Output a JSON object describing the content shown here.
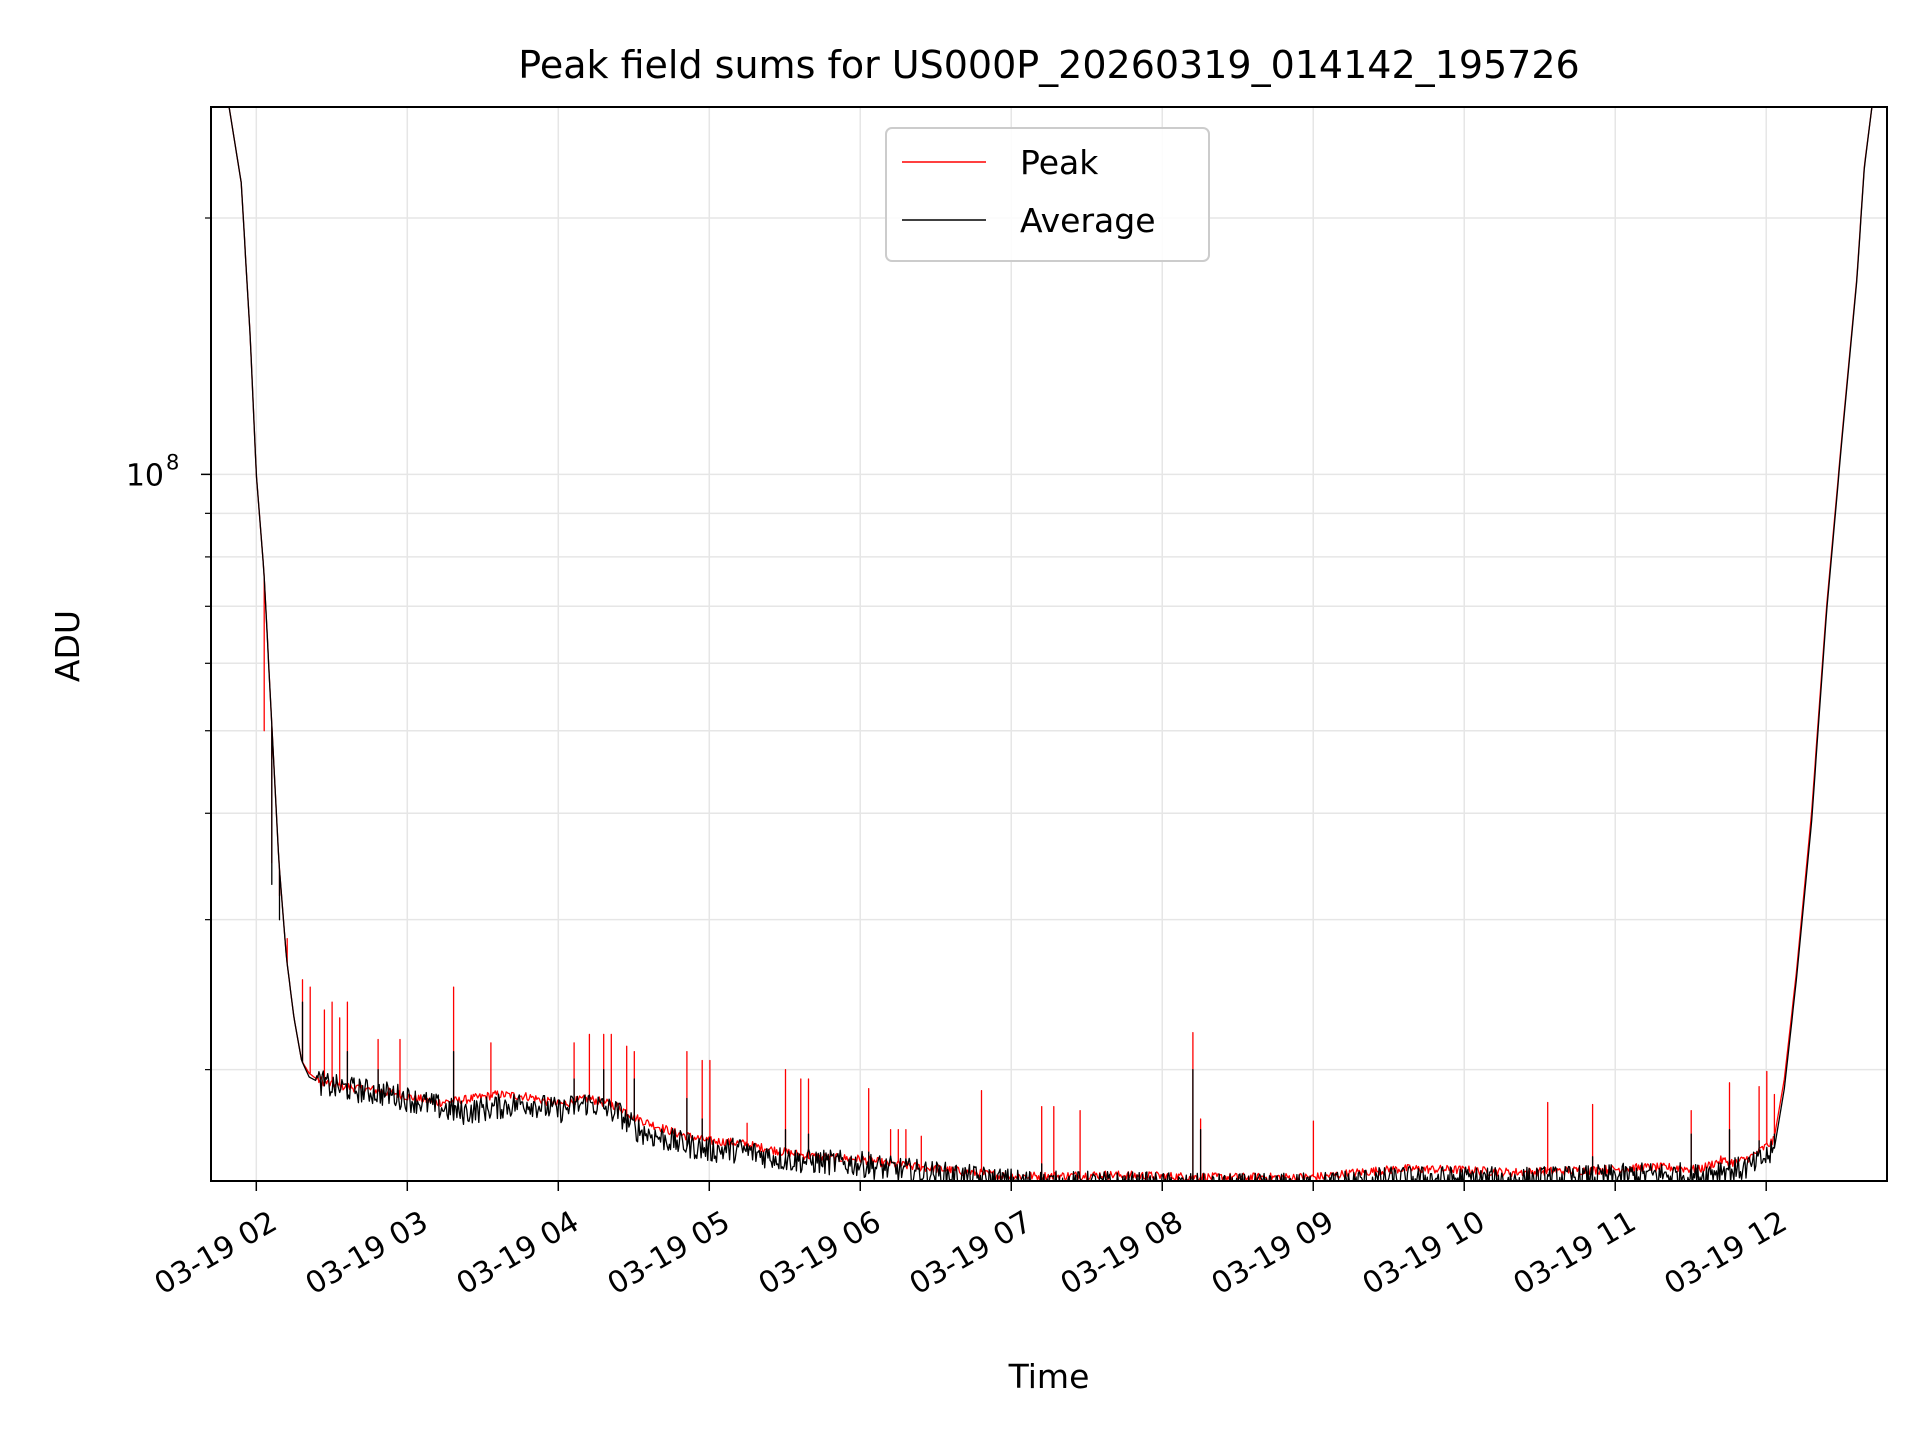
{
  "chart_data": {
    "type": "line",
    "title": "Peak field sums for US000P_20260319_014142_195726",
    "xlabel": "Time",
    "ylabel": "ADU",
    "yscale": "log",
    "ylim": [
      14800000,
      270000000
    ],
    "xlim_hours": [
      1.7,
      12.8
    ],
    "grid": true,
    "legend_position": "upper-center",
    "y_major_ticks": [
      {
        "value": 100000000,
        "base": "10",
        "exponent": "8"
      }
    ],
    "y_minor_ticks": [
      20000000,
      30000000,
      40000000,
      50000000,
      60000000,
      70000000,
      80000000,
      90000000,
      200000000
    ],
    "x_ticks": [
      {
        "hour": 2,
        "label": "03-19 02"
      },
      {
        "hour": 3,
        "label": "03-19 03"
      },
      {
        "hour": 4,
        "label": "03-19 04"
      },
      {
        "hour": 5,
        "label": "03-19 05"
      },
      {
        "hour": 6,
        "label": "03-19 06"
      },
      {
        "hour": 7,
        "label": "03-19 07"
      },
      {
        "hour": 8,
        "label": "03-19 08"
      },
      {
        "hour": 9,
        "label": "03-19 09"
      },
      {
        "hour": 10,
        "label": "03-19 10"
      },
      {
        "hour": 11,
        "label": "03-19 11"
      },
      {
        "hour": 12,
        "label": "03-19 12"
      }
    ],
    "series": [
      {
        "name": "Peak",
        "color": "#ff0000",
        "baseline_x": [
          1.82,
          1.9,
          1.96,
          2.0,
          2.05,
          2.1,
          2.15,
          2.2,
          2.25,
          2.3,
          2.35,
          2.4,
          2.5,
          2.7,
          2.9,
          3.0,
          3.2,
          3.35,
          3.6,
          3.8,
          4.0,
          4.2,
          4.4,
          4.5,
          4.6,
          4.8,
          5.0,
          5.2,
          5.5,
          5.7,
          6.0,
          6.2,
          6.5,
          6.8,
          7.0,
          7.3,
          7.6,
          8.0,
          8.3,
          8.6,
          9.0,
          9.3,
          9.6,
          10.0,
          10.3,
          10.6,
          10.9,
          11.2,
          11.4,
          11.55,
          11.7,
          11.8,
          11.9,
          12.05,
          12.12,
          12.2,
          12.3,
          12.4,
          12.5,
          12.6,
          12.65,
          12.7
        ],
        "baseline_y": [
          270000000,
          220000000,
          145000000,
          100000000,
          77000000,
          52000000,
          35000000,
          27000000,
          23000000,
          20500000,
          19800000,
          19500000,
          19200000,
          19000000,
          18800000,
          18600000,
          18300000,
          18400000,
          18700000,
          18600000,
          18200000,
          18500000,
          18100000,
          17600000,
          17300000,
          16800000,
          16500000,
          16400000,
          16000000,
          15800000,
          15700000,
          15500000,
          15300000,
          15100000,
          15000000,
          15000000,
          15050000,
          15000000,
          14950000,
          14950000,
          14950000,
          15150000,
          15300000,
          15250000,
          15150000,
          15200000,
          15250000,
          15350000,
          15350000,
          15250000,
          15650000,
          15550000,
          15800000,
          16500000,
          19500000,
          26000000,
          40000000,
          70000000,
          110000000,
          170000000,
          230000000,
          270000000
        ],
        "spikes_x": [
          2.05,
          2.1,
          2.15,
          2.2,
          2.3,
          2.35,
          2.45,
          2.5,
          2.55,
          2.6,
          2.8,
          2.95,
          3.3,
          3.55,
          4.1,
          4.2,
          4.3,
          4.35,
          4.45,
          4.5,
          4.85,
          4.95,
          5.0,
          5.25,
          5.5,
          5.6,
          5.65,
          6.05,
          6.2,
          6.25,
          6.3,
          6.4,
          6.8,
          7.2,
          7.28,
          7.45,
          8.2,
          8.25,
          9.0,
          10.55,
          10.85,
          11.5,
          11.75,
          11.95,
          12.0,
          12.05
        ],
        "spikes_y": [
          50000000,
          35000000,
          32000000,
          28500000,
          25500000,
          25000000,
          23500000,
          24000000,
          23000000,
          24000000,
          21700000,
          21700000,
          25000000,
          21500000,
          21500000,
          22000000,
          22000000,
          22000000,
          21300000,
          21000000,
          21000000,
          20500000,
          20500000,
          17300000,
          20000000,
          19500000,
          19500000,
          19000000,
          17000000,
          17000000,
          17000000,
          16700000,
          18900000,
          18100000,
          18100000,
          17900000,
          22100000,
          17500000,
          17400000,
          18300000,
          18200000,
          17900000,
          19300000,
          19100000,
          19900000,
          18700000
        ]
      },
      {
        "name": "Average",
        "color": "#000000",
        "baseline_x": [
          1.82,
          1.9,
          1.96,
          2.0,
          2.05,
          2.1,
          2.15,
          2.2,
          2.25,
          2.3,
          2.35,
          2.4,
          2.5,
          2.7,
          2.9,
          3.0,
          3.2,
          3.35,
          3.6,
          3.8,
          4.0,
          4.2,
          4.4,
          4.5,
          4.6,
          4.8,
          5.0,
          5.2,
          5.5,
          5.7,
          6.0,
          6.2,
          6.5,
          6.8,
          7.0,
          7.3,
          7.6,
          8.0,
          8.3,
          8.6,
          9.0,
          9.3,
          9.6,
          10.0,
          10.3,
          10.6,
          10.9,
          11.2,
          11.4,
          11.55,
          11.7,
          11.8,
          11.9,
          12.05,
          12.12,
          12.2,
          12.3,
          12.4,
          12.5,
          12.6,
          12.65,
          12.7
        ],
        "baseline_y": [
          270000000,
          220000000,
          145000000,
          100000000,
          77000000,
          52000000,
          35000000,
          27000000,
          23000000,
          20500000,
          19600000,
          19400000,
          19100000,
          18900000,
          18700000,
          18500000,
          18100000,
          17800000,
          18100000,
          18300000,
          17900000,
          18300000,
          17800000,
          17100000,
          16800000,
          16400000,
          16100000,
          16100000,
          15700000,
          15600000,
          15500000,
          15300000,
          15100000,
          14900000,
          14800000,
          14700000,
          14700000,
          14650000,
          14600000,
          14600000,
          14650000,
          14800000,
          14900000,
          14900000,
          14850000,
          14900000,
          14950000,
          15050000,
          15050000,
          15000000,
          15300000,
          15250000,
          15400000,
          16000000,
          19000000,
          25500000,
          39000000,
          69000000,
          109000000,
          169000000,
          229000000,
          270000000
        ],
        "spikes_x": [
          2.1,
          2.15,
          2.3,
          2.6,
          2.8,
          3.3,
          4.1,
          4.3,
          4.5,
          4.85,
          4.95,
          5.5,
          5.65,
          6.05,
          7.2,
          8.2,
          8.25,
          10.85,
          11.5,
          11.75,
          11.95,
          12.05
        ],
        "spikes_y": [
          33000000,
          30000000,
          24000000,
          21000000,
          20000000,
          21000000,
          19500000,
          20000000,
          19500000,
          18500000,
          17500000,
          17000000,
          16800000,
          16000000,
          15500000,
          20000000,
          17000000,
          15800000,
          16800000,
          17000000,
          16500000,
          16800000
        ]
      }
    ]
  }
}
